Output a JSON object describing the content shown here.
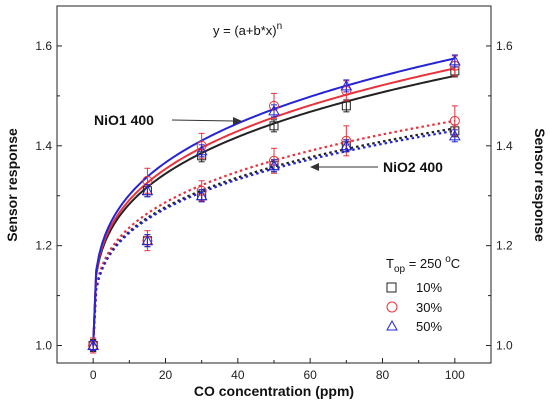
{
  "chart_data": {
    "type": "scatter",
    "formula": "y = (a+b*x)",
    "formula_exp": "n",
    "xlabel": "CO concentration (ppm)",
    "ylabel_left": "Sensor response",
    "ylabel_right": "Sensor response",
    "xlim": [
      -10,
      110
    ],
    "ylim": [
      0.965,
      1.68
    ],
    "x_ticks": [
      0,
      20,
      40,
      60,
      80,
      100
    ],
    "y_ticks_left": [
      1.0,
      1.2,
      1.4,
      1.6
    ],
    "y_ticks_right": [
      1.0,
      1.2,
      1.4,
      1.6
    ],
    "annotations": [
      {
        "text": "NiO1 400",
        "target": [
          42,
          1.465
        ]
      },
      {
        "text": "NiO2 400",
        "target": [
          58,
          1.36
        ]
      }
    ],
    "legend": {
      "title_prefix": "T",
      "title_sub": "op",
      "title_value": " = 250 ",
      "title_sup": "o",
      "title_unit": "C",
      "entries": [
        {
          "label": "10%",
          "marker": "square",
          "color": "#222222"
        },
        {
          "label": "30%",
          "marker": "circle",
          "color": "#e8323c"
        },
        {
          "label": "50%",
          "marker": "triangle",
          "color": "#2424d6"
        }
      ]
    },
    "x": [
      0,
      15,
      30,
      50,
      70,
      100
    ],
    "series": [
      {
        "group": "NiO1 400",
        "label": "10%",
        "marker": "square",
        "color": "#222222",
        "fit": "solid",
        "values": [
          1.0,
          1.31,
          1.38,
          1.44,
          1.48,
          1.55
        ],
        "errors": [
          0.012,
          0.012,
          0.012,
          0.012,
          0.012,
          0.012
        ]
      },
      {
        "group": "NiO1 400",
        "label": "30%",
        "marker": "circle",
        "color": "#e8323c",
        "fit": "solid",
        "values": [
          1.0,
          1.33,
          1.4,
          1.48,
          1.51,
          1.56
        ],
        "errors": [
          0.015,
          0.025,
          0.025,
          0.025,
          0.02,
          0.02
        ]
      },
      {
        "group": "NiO1 400",
        "label": "50%",
        "marker": "triangle",
        "color": "#2424d6",
        "fit": "solid",
        "values": [
          1.0,
          1.31,
          1.39,
          1.47,
          1.52,
          1.57
        ],
        "errors": [
          0.01,
          0.012,
          0.012,
          0.012,
          0.012,
          0.012
        ]
      },
      {
        "group": "NiO2 400",
        "label": "10%",
        "marker": "square",
        "color": "#222222",
        "fit": "dotted",
        "values": [
          1.0,
          1.21,
          1.3,
          1.36,
          1.4,
          1.43
        ],
        "errors": [
          0.012,
          0.012,
          0.012,
          0.012,
          0.012,
          0.012
        ]
      },
      {
        "group": "NiO2 400",
        "label": "30%",
        "marker": "circle",
        "color": "#e8323c",
        "fit": "dotted",
        "values": [
          1.0,
          1.21,
          1.31,
          1.37,
          1.41,
          1.45
        ],
        "errors": [
          0.015,
          0.02,
          0.02,
          0.025,
          0.03,
          0.03
        ]
      },
      {
        "group": "NiO2 400",
        "label": "50%",
        "marker": "triangle",
        "color": "#2424d6",
        "fit": "dotted",
        "values": [
          1.0,
          1.21,
          1.3,
          1.36,
          1.4,
          1.42
        ],
        "errors": [
          0.01,
          0.012,
          0.012,
          0.012,
          0.012,
          0.012
        ]
      }
    ],
    "fit_curves": [
      {
        "group": "NiO1 400",
        "label": "10%",
        "color": "#222222",
        "style": "solid",
        "end": 1.54
      },
      {
        "group": "NiO1 400",
        "label": "30%",
        "color": "#e8323c",
        "style": "solid",
        "end": 1.555
      },
      {
        "group": "NiO1 400",
        "label": "50%",
        "color": "#2424d6",
        "style": "solid",
        "end": 1.575
      },
      {
        "group": "NiO2 400",
        "label": "10%",
        "color": "#222222",
        "style": "dotted",
        "end": 1.435
      },
      {
        "group": "NiO2 400",
        "label": "30%",
        "color": "#e8323c",
        "style": "dotted",
        "end": 1.45
      },
      {
        "group": "NiO2 400",
        "label": "50%",
        "color": "#2424d6",
        "style": "dotted",
        "end": 1.43
      }
    ]
  }
}
